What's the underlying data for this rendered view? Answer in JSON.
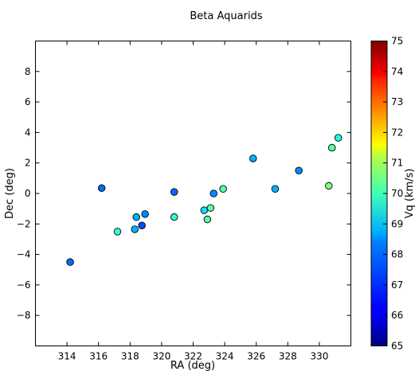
{
  "chart_data": {
    "type": "scatter",
    "title": "Beta Aquarids",
    "xlabel": "RA (deg)",
    "ylabel": "Dec (deg)",
    "xlim": [
      312,
      332
    ],
    "ylim": [
      -10,
      10
    ],
    "xticks": [
      314,
      316,
      318,
      320,
      322,
      324,
      326,
      328,
      330
    ],
    "yticks": [
      -8,
      -6,
      -4,
      -2,
      0,
      2,
      4,
      6,
      8
    ],
    "grid": false,
    "colorbar": {
      "label": "Vq (km/s)",
      "min": 65,
      "max": 75,
      "ticks": [
        65,
        66,
        67,
        68,
        69,
        70,
        71,
        72,
        73,
        74,
        75
      ],
      "colormap": "jet"
    },
    "points": [
      {
        "x": 314.2,
        "y": -4.5,
        "v": 67.3
      },
      {
        "x": 316.2,
        "y": 0.35,
        "v": 67.3
      },
      {
        "x": 317.2,
        "y": -2.5,
        "v": 69.2
      },
      {
        "x": 318.3,
        "y": -2.35,
        "v": 68.0
      },
      {
        "x": 318.4,
        "y": -1.55,
        "v": 68.0
      },
      {
        "x": 318.75,
        "y": -2.1,
        "v": 67.0
      },
      {
        "x": 318.95,
        "y": -1.35,
        "v": 67.6
      },
      {
        "x": 320.8,
        "y": 0.1,
        "v": 67.3
      },
      {
        "x": 320.8,
        "y": -1.55,
        "v": 69.2
      },
      {
        "x": 322.7,
        "y": -1.1,
        "v": 68.5
      },
      {
        "x": 322.9,
        "y": -1.7,
        "v": 69.6
      },
      {
        "x": 323.1,
        "y": -0.95,
        "v": 69.6
      },
      {
        "x": 323.3,
        "y": 0.0,
        "v": 67.6
      },
      {
        "x": 323.9,
        "y": 0.3,
        "v": 69.6
      },
      {
        "x": 325.8,
        "y": 2.3,
        "v": 68.0
      },
      {
        "x": 327.2,
        "y": 0.3,
        "v": 68.0
      },
      {
        "x": 328.7,
        "y": 1.5,
        "v": 67.6
      },
      {
        "x": 330.6,
        "y": 0.5,
        "v": 70.0
      },
      {
        "x": 330.8,
        "y": 3.0,
        "v": 69.6
      },
      {
        "x": 331.2,
        "y": 3.65,
        "v": 69.0
      }
    ]
  }
}
